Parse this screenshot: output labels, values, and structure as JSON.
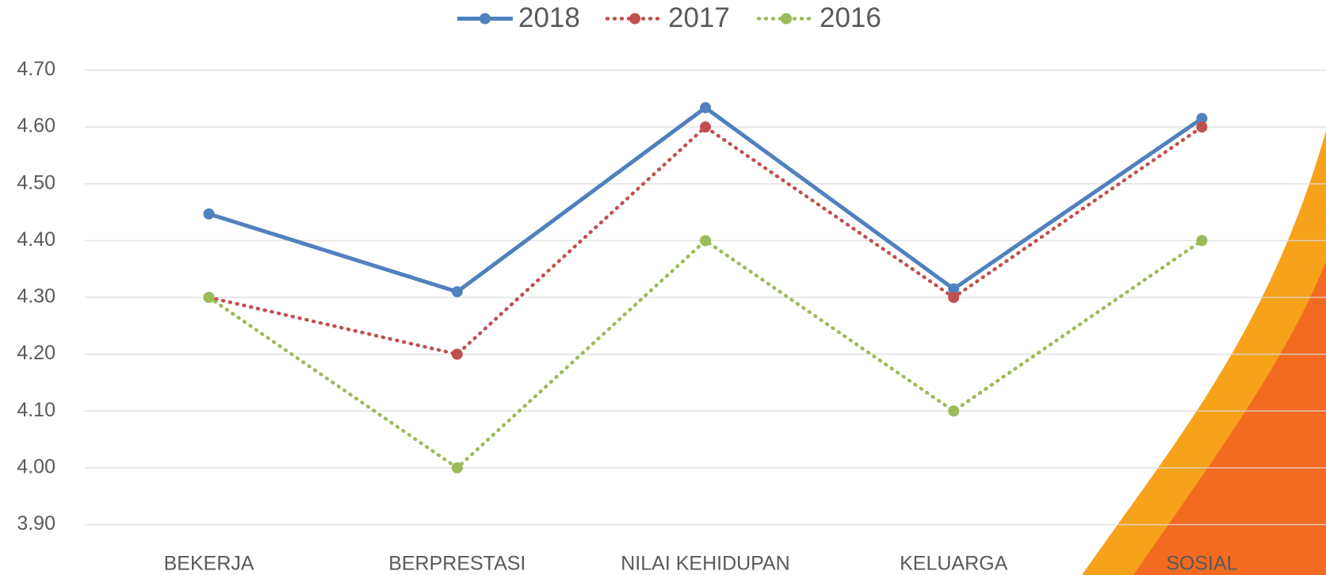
{
  "chart_data": {
    "type": "line",
    "categories": [
      "BEKERJA",
      "BERPRESTASI",
      "NILAI KEHIDUPAN",
      "KELUARGA",
      "SOSIAL"
    ],
    "series": [
      {
        "name": "2018",
        "color": "#4f81bd",
        "style": "solid",
        "values": [
          4.447,
          4.31,
          4.634,
          4.315,
          4.615
        ]
      },
      {
        "name": "2017",
        "color": "#c0504d",
        "style": "dotted",
        "values": [
          4.3,
          4.2,
          4.6,
          4.3,
          4.6
        ]
      },
      {
        "name": "2016",
        "color": "#9bbb59",
        "style": "dotted",
        "values": [
          4.3,
          4.0,
          4.4,
          4.1,
          4.4
        ]
      }
    ],
    "ylim": [
      3.9,
      4.7
    ],
    "yticks": [
      {
        "value": 3.9,
        "label": "3.90"
      },
      {
        "value": 4.0,
        "label": "4.00"
      },
      {
        "value": 4.1,
        "label": "4.10"
      },
      {
        "value": 4.2,
        "label": "4.20"
      },
      {
        "value": 4.3,
        "label": "4.30"
      },
      {
        "value": 4.4,
        "label": "4.40"
      },
      {
        "value": 4.5,
        "label": "4.50"
      },
      {
        "value": 4.6,
        "label": "4.60"
      },
      {
        "value": 4.7,
        "label": "4.70"
      }
    ],
    "grid": true,
    "legend": "top"
  }
}
